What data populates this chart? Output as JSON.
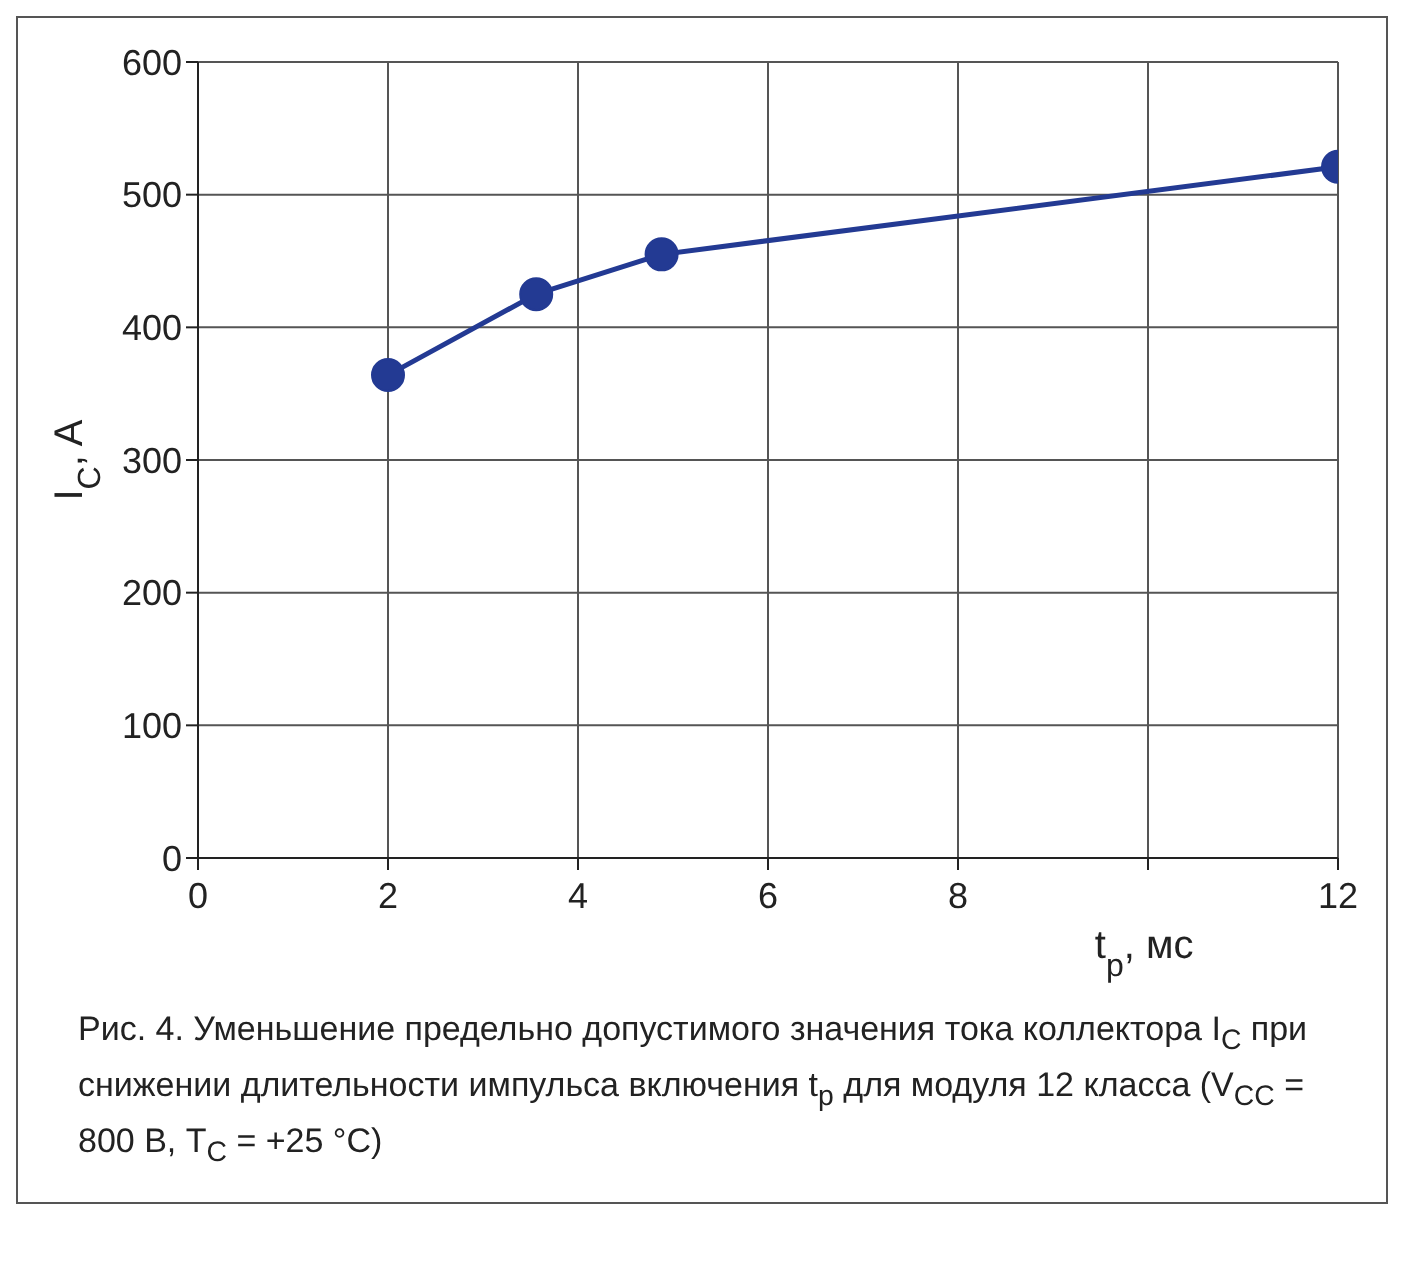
{
  "chart_data": {
    "type": "line",
    "xlabel": "t$_{p}$, мс",
    "ylabel": "I$_{C}$, A",
    "x": [
      2,
      3.56,
      4.88,
      12
    ],
    "series": [
      {
        "color": "#233a93",
        "values": [
          364,
          425,
          455,
          521
        ]
      }
    ],
    "xlim": [
      0,
      12
    ],
    "xticks": [
      0,
      2,
      4,
      6,
      8,
      {
        "value": 10,
        "label": null
      },
      12
    ],
    "ylim": [
      0,
      600
    ],
    "yticks": [
      0,
      100,
      200,
      300,
      400,
      500,
      600
    ],
    "grid": true,
    "legend": false,
    "marker": "circle",
    "line_style": "solid",
    "annotations": [
      "Рис. 4. Уменьшение предельно допустимого значения тока коллектора I$_{C}$ при снижении длительности импульса включения t$_{p}$ для модуля 12 класса (V$_{CC}$ = 800 В, T$_{C}$ = +25 °C)"
    ]
  }
}
